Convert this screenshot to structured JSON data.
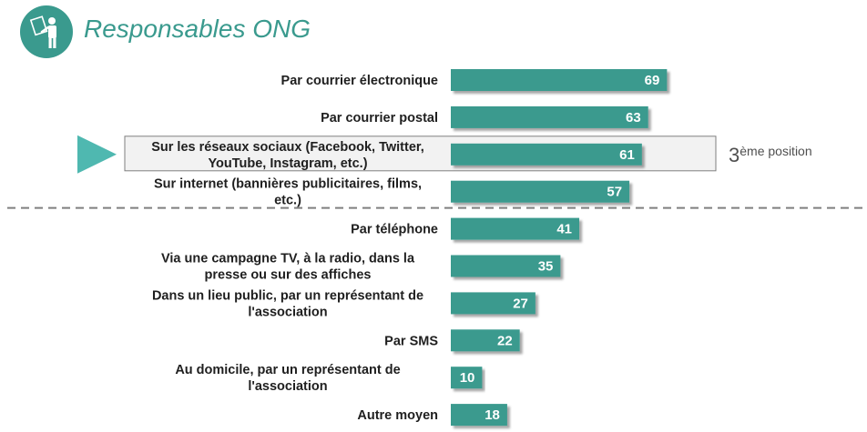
{
  "header": {
    "title": "Responsables ONG",
    "icon": "person-presenting-icon",
    "accent_color": "#3a9a8e"
  },
  "chart_data": {
    "type": "bar",
    "orientation": "horizontal",
    "categories": [
      [
        "Par courrier électronique"
      ],
      [
        "Par courrier postal"
      ],
      [
        "Sur les réseaux sociaux (Facebook, Twitter,",
        "YouTube, Instagram, etc.)"
      ],
      [
        "Sur internet (bannières publicitaires, films,",
        "etc.)"
      ],
      [
        "Par téléphone"
      ],
      [
        "Via une campagne TV, à la radio, dans la",
        "presse ou sur des affiches"
      ],
      [
        "Dans un lieu public, par un représentant de",
        "l'association"
      ],
      [
        "Par SMS"
      ],
      [
        "Au domicile, par un représentant de",
        "l'association"
      ],
      [
        "Autre moyen"
      ]
    ],
    "values": [
      69,
      63,
      61,
      57,
      41,
      35,
      27,
      22,
      10,
      18
    ],
    "bar_color": "#3a9a8e",
    "highlight_index": 2,
    "highlight_note": {
      "number": "3",
      "suffix": "ème position"
    },
    "divider_after_index": 3,
    "grid": false,
    "legend": "none"
  }
}
